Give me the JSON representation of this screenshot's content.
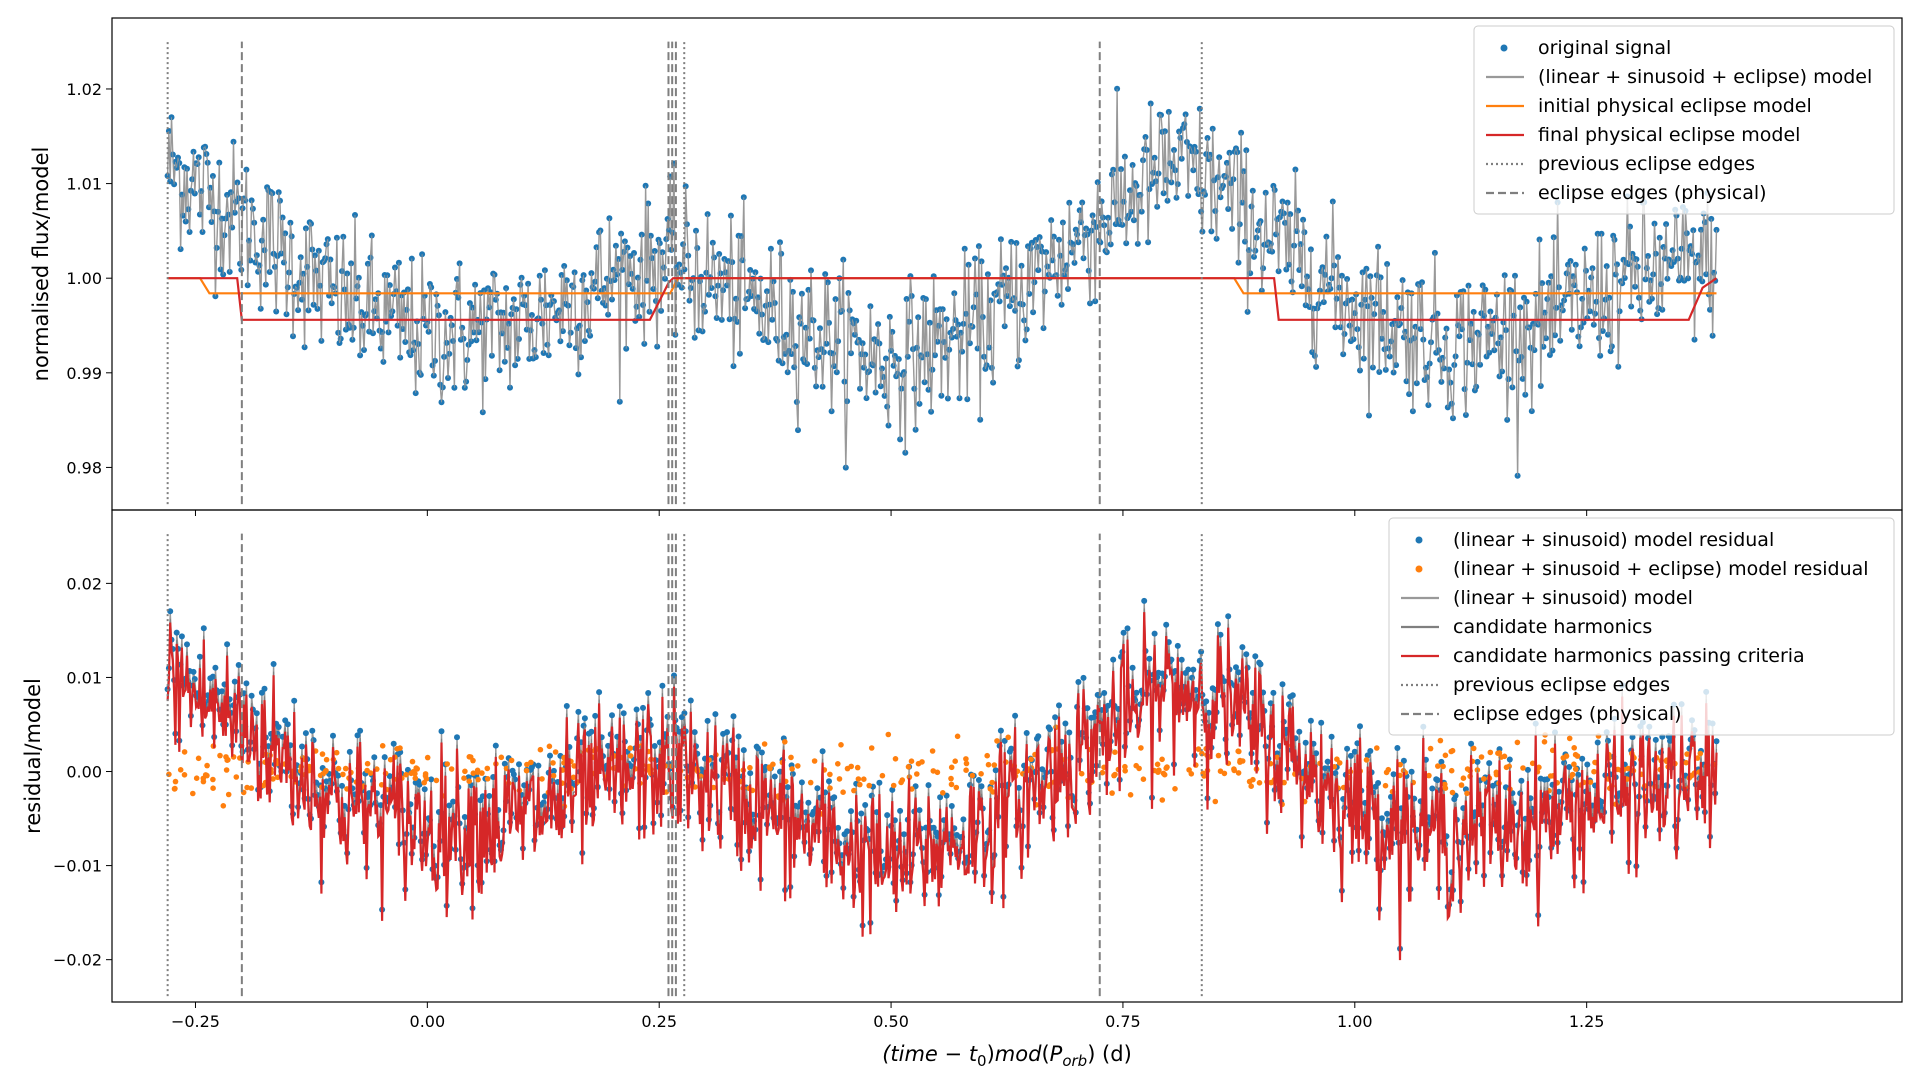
{
  "chart_data": [
    {
      "type": "scatter",
      "panel": "top",
      "ylabel": "normalised flux/model",
      "xlim": [
        -0.34,
        1.59
      ],
      "ylim": [
        0.9755,
        1.0275
      ],
      "yticks": [
        0.98,
        0.99,
        1.0,
        1.01,
        1.02
      ],
      "ytick_labels": [
        "0.98",
        "0.99",
        "1.00",
        "1.01",
        "1.02"
      ],
      "series": [
        {
          "name": "original signal",
          "kind": "scatter",
          "color": "#1f77b4",
          "trend": {
            "x": [
              -0.28,
              -0.2,
              -0.1,
              0.0,
              0.1,
              0.2,
              0.26,
              0.3,
              0.4,
              0.5,
              0.6,
              0.7,
              0.8,
              0.85,
              0.9,
              1.0,
              1.1,
              1.2,
              1.3,
              1.39
            ],
            "y": [
              1.012,
              1.006,
              0.998,
              0.994,
              0.995,
              1.0,
              1.002,
              1.0,
              0.995,
              0.991,
              0.995,
              1.004,
              1.012,
              1.01,
              1.005,
              0.997,
              0.993,
              0.995,
              1.0,
              1.002
            ]
          },
          "scatter_amplitude": 0.0085
        },
        {
          "name": "(linear + sinusoid + eclipse) model",
          "kind": "line",
          "color": "#999999"
        },
        {
          "name": "initial physical eclipse model",
          "kind": "step",
          "color": "#ff7f0e",
          "x": [
            -0.28,
            -0.245,
            -0.235,
            0.262,
            0.27,
            0.277,
            0.279,
            0.87,
            0.88,
            1.39
          ],
          "y": [
            1.0,
            1.0,
            0.9984,
            0.9984,
            1.0,
            1.0,
            1.0,
            1.0,
            0.9984,
            0.9984
          ]
        },
        {
          "name": "final physical eclipse model",
          "kind": "step",
          "color": "#d62728",
          "x": [
            -0.28,
            -0.205,
            -0.2,
            0.24,
            0.255,
            0.26,
            0.265,
            0.913,
            0.918,
            1.36,
            1.375,
            1.39
          ],
          "y": [
            1.0,
            1.0,
            0.9956,
            0.9956,
            0.9985,
            0.9995,
            1.0,
            1.0,
            0.9956,
            0.9956,
            0.999,
            1.0
          ]
        },
        {
          "name": "previous eclipse edges",
          "kind": "vline-dotted",
          "color": "#7f7f7f",
          "x": [
            -0.28,
            0.277,
            0.835
          ]
        },
        {
          "name": "eclipse edges (physical)",
          "kind": "vline-dashed",
          "color": "#7f7f7f",
          "x": [
            -0.2,
            0.26,
            0.264,
            0.268,
            0.725
          ]
        }
      ],
      "legend": {
        "placement": "top-right",
        "entries": [
          {
            "label": "original signal",
            "style": "dot",
            "color": "#1f77b4"
          },
          {
            "label": "(linear + sinusoid + eclipse) model",
            "style": "line",
            "color": "#999999"
          },
          {
            "label": "initial physical eclipse model",
            "style": "line",
            "color": "#ff7f0e"
          },
          {
            "label": "final physical eclipse model",
            "style": "line",
            "color": "#d62728"
          },
          {
            "label": "previous eclipse edges",
            "style": "dotted",
            "color": "#7f7f7f"
          },
          {
            "label": "eclipse edges (physical)",
            "style": "dashed",
            "color": "#7f7f7f"
          }
        ]
      }
    },
    {
      "type": "scatter",
      "panel": "bottom",
      "ylabel": "residual/model",
      "xlabel": "(time − t0)mod(Porb) (d)",
      "xlim": [
        -0.34,
        1.59
      ],
      "ylim": [
        -0.0245,
        0.0278
      ],
      "yticks": [
        -0.02,
        -0.01,
        0.0,
        0.01,
        0.02
      ],
      "ytick_labels": [
        "−0.02",
        "−0.01",
        "0.00",
        "0.01",
        "0.02"
      ],
      "xticks": [
        -0.25,
        0.0,
        0.25,
        0.5,
        0.75,
        1.0,
        1.25
      ],
      "xtick_labels": [
        "−0.25",
        "0.00",
        "0.25",
        "0.50",
        "0.75",
        "1.00",
        "1.25"
      ],
      "series": [
        {
          "name": "(linear + sinusoid) model residual",
          "kind": "scatter",
          "color": "#1f77b4",
          "trend": {
            "x": [
              -0.28,
              -0.2,
              -0.1,
              0.0,
              0.1,
              0.2,
              0.26,
              0.3,
              0.4,
              0.5,
              0.6,
              0.7,
              0.8,
              0.85,
              0.9,
              1.0,
              1.1,
              1.2,
              1.3,
              1.39
            ],
            "y": [
              0.011,
              0.006,
              -0.002,
              -0.005,
              -0.004,
              0.0,
              0.002,
              0.0,
              -0.005,
              -0.009,
              -0.005,
              0.003,
              0.01,
              0.009,
              0.005,
              -0.003,
              -0.006,
              -0.004,
              -0.001,
              0.0
            ]
          },
          "scatter_amplitude": 0.0085
        },
        {
          "name": "(linear + sinusoid + eclipse) model residual",
          "kind": "scatter",
          "color": "#ff7f0e",
          "trend": {
            "x": [
              -0.28,
              1.39
            ],
            "y": [
              0.0,
              0.0
            ]
          },
          "scatter_amplitude": 0.0015
        },
        {
          "name": "(linear + sinusoid) model",
          "kind": "line",
          "color": "#999999"
        },
        {
          "name": "candidate harmonics",
          "kind": "line",
          "color": "#7f7f7f"
        },
        {
          "name": "candidate harmonics passing criteria",
          "kind": "line",
          "color": "#d62728"
        },
        {
          "name": "previous eclipse edges",
          "kind": "vline-dotted",
          "color": "#7f7f7f",
          "x": [
            -0.28,
            0.277,
            0.835
          ]
        },
        {
          "name": "eclipse edges (physical)",
          "kind": "vline-dashed",
          "color": "#7f7f7f",
          "x": [
            -0.2,
            0.26,
            0.264,
            0.268,
            0.725
          ]
        }
      ],
      "legend": {
        "placement": "top-right",
        "entries": [
          {
            "label": "(linear + sinusoid) model residual",
            "style": "dot",
            "color": "#1f77b4"
          },
          {
            "label": "(linear + sinusoid + eclipse) model residual",
            "style": "dot",
            "color": "#ff7f0e"
          },
          {
            "label": "(linear + sinusoid) model",
            "style": "line",
            "color": "#999999"
          },
          {
            "label": "candidate harmonics",
            "style": "line",
            "color": "#7f7f7f"
          },
          {
            "label": "candidate harmonics passing criteria",
            "style": "line",
            "color": "#d62728"
          },
          {
            "label": "previous eclipse edges",
            "style": "dotted",
            "color": "#7f7f7f"
          },
          {
            "label": "eclipse edges (physical)",
            "style": "dashed",
            "color": "#7f7f7f"
          }
        ]
      }
    }
  ]
}
